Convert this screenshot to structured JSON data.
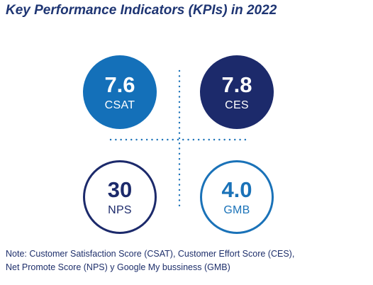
{
  "title": "Key Performance Indicators (KPIs) in 2022",
  "kpis": {
    "csat": {
      "value": "7.6",
      "label": "CSAT"
    },
    "ces": {
      "value": "7.8",
      "label": "CES"
    },
    "nps": {
      "value": "30",
      "label": "NPS"
    },
    "gmb": {
      "value": "4.0",
      "label": "GMB"
    }
  },
  "note": {
    "line1": "Note: Customer Satisfaction Score (CSAT), Customer Effort Score (CES),",
    "line2": "Net Promote Score (NPS) y Google My bussiness (GMB)"
  },
  "colors": {
    "title": "#1e3573",
    "csat": "#1470b9",
    "ces": "#1c2a6b",
    "nps_ring": "#1c2a6b",
    "gmb_ring": "#1a72b8",
    "dotted_divider": "#1a72b8"
  }
}
